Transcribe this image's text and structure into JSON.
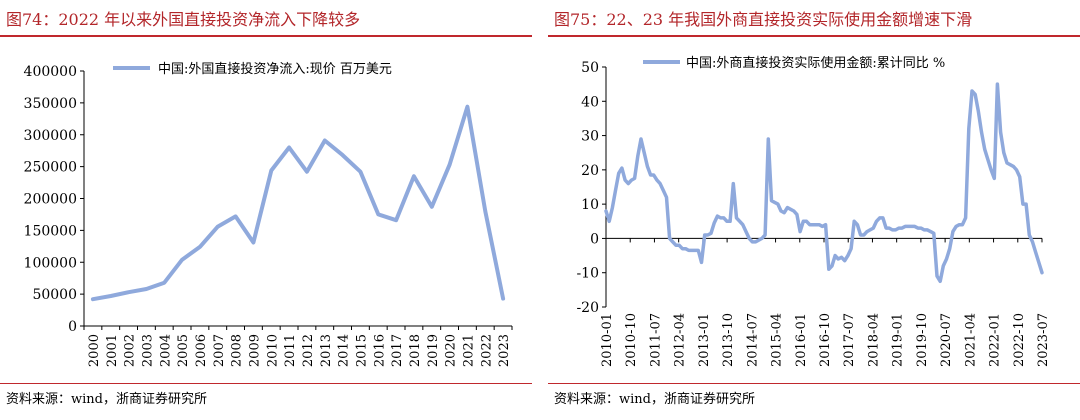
{
  "charts": [
    {
      "figure_title": "图74：2022 年以来外国直接投资净流入下降较多",
      "source": "资料来源：wind，浙商证券研究所"
    },
    {
      "figure_title": "图75：22、23 年我国外商直接投资实际使用金额增速下滑",
      "source": "资料来源：wind，浙商证券研究所"
    }
  ],
  "colors": {
    "title": "#b3262a",
    "rule": "#c0282d",
    "line": "#8fa9dc"
  },
  "chart_data": [
    {
      "type": "line",
      "title": "",
      "xlabel": "",
      "ylabel": "",
      "ylim": [
        0,
        400000
      ],
      "yticks": [
        0,
        50000,
        100000,
        150000,
        200000,
        250000,
        300000,
        350000,
        400000
      ],
      "grid": false,
      "legend_position": "top-center",
      "x": [
        "2000",
        "2001",
        "2002",
        "2003",
        "2004",
        "2005",
        "2006",
        "2007",
        "2008",
        "2009",
        "2010",
        "2011",
        "2012",
        "2013",
        "2014",
        "2015",
        "2016",
        "2017",
        "2018",
        "2019",
        "2020",
        "2021",
        "2022",
        "2023"
      ],
      "series": [
        {
          "name": "中国:外国直接投资净流入:现价 百万美元",
          "values": [
            42000,
            47000,
            53000,
            58000,
            68000,
            104000,
            124000,
            156000,
            172000,
            131000,
            244000,
            280000,
            242000,
            291000,
            268000,
            242000,
            175000,
            166000,
            235000,
            187000,
            253000,
            344000,
            180000,
            43000
          ]
        }
      ]
    },
    {
      "type": "line",
      "title": "",
      "xlabel": "",
      "ylabel": "",
      "ylim": [
        -20,
        50
      ],
      "yticks": [
        -20,
        -10,
        0,
        10,
        20,
        30,
        40,
        50
      ],
      "grid": false,
      "legend_position": "top-center",
      "x_tick_labels": [
        "2010-01",
        "2010-10",
        "2011-07",
        "2012-04",
        "2013-01",
        "2013-10",
        "2014-07",
        "2015-04",
        "2016-01",
        "2016-10",
        "2017-07",
        "2018-04",
        "2019-01",
        "2019-10",
        "2020-07",
        "2021-04",
        "2022-01",
        "2022-10",
        "2023-07"
      ],
      "x_tick_step_months": 9,
      "x_start": "2010-01",
      "series": [
        {
          "name": "中国:外商直接投资实际使用金额:累计同比 %",
          "values": [
            8,
            5,
            9,
            14,
            19,
            20.5,
            17,
            16,
            17,
            17.5,
            24,
            29,
            25,
            21,
            18.5,
            18.5,
            17,
            16,
            14,
            12,
            0,
            -1,
            -2,
            -2,
            -3,
            -3,
            -3.5,
            -3.5,
            -3.5,
            -3.5,
            -7,
            1,
            1,
            1.5,
            4.5,
            6.5,
            6,
            6,
            5,
            5,
            16,
            6,
            5,
            4,
            2,
            0,
            -1,
            -1,
            -0.5,
            0,
            1,
            29,
            11,
            10.5,
            10,
            8,
            7.5,
            9,
            8.5,
            8,
            7,
            2,
            5,
            5,
            4,
            4,
            4,
            4,
            3.5,
            4,
            -9,
            -8,
            -5,
            -6,
            -5.5,
            -6.5,
            -5,
            -3,
            5,
            4,
            1,
            1,
            2,
            2.5,
            3,
            5,
            6,
            6,
            3,
            3,
            2.5,
            2.5,
            3,
            3,
            3.5,
            3.5,
            3.5,
            3.5,
            3,
            3,
            2.5,
            2.5,
            2,
            1.5,
            -11,
            -12.5,
            -8,
            -6,
            -3,
            2,
            3.5,
            4,
            4,
            6,
            32,
            43,
            42,
            37,
            31,
            26,
            23,
            20,
            17.5,
            45,
            31,
            25,
            22,
            21.5,
            21,
            20,
            18,
            10,
            10,
            1,
            -1,
            -4,
            -7,
            -10
          ]
        }
      ]
    }
  ]
}
